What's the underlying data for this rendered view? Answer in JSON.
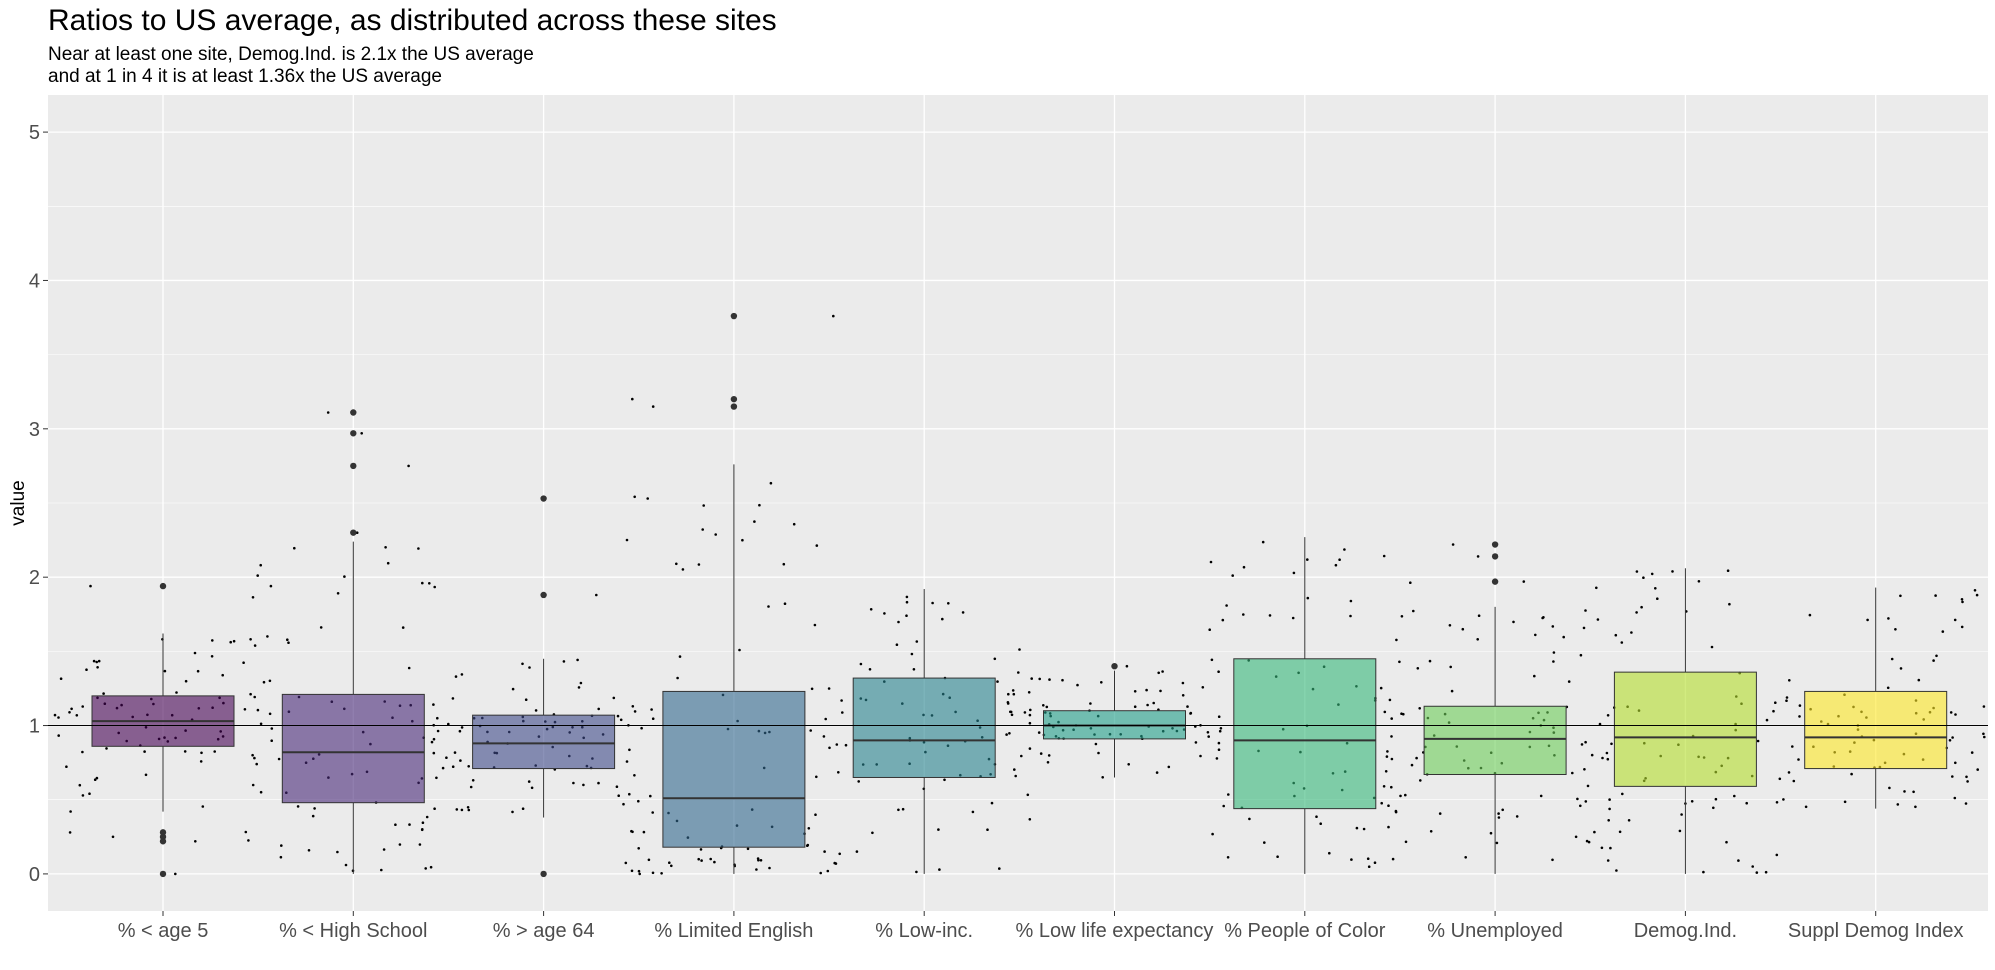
{
  "chart_data": {
    "type": "boxplot",
    "title": "Ratios to US average, as distributed across these sites",
    "subtitle_lines": [
      "Near at least one site, Demog.Ind. is 2.1x the US average",
      "and at 1 in 4 it is at least 1.36x the US average"
    ],
    "xlabel": "",
    "ylabel": "value",
    "ylim": [
      -0.25,
      5.25
    ],
    "yticks": [
      0,
      1,
      2,
      3,
      4,
      5
    ],
    "reference_line": 1,
    "grid": true,
    "legend": "none",
    "categories": [
      "% < age 5",
      "% < High School",
      "% > age 64",
      "% Limited English",
      "% Low-inc.",
      "% Low life expectancy",
      "% People of Color",
      "% Unemployed",
      "Demog.Ind.",
      "Suppl Demog Index"
    ],
    "boxes": [
      {
        "name": "% < age 5",
        "lower_whisker": 0.42,
        "q1": 0.86,
        "median": 1.03,
        "q3": 1.2,
        "upper_whisker": 1.62,
        "outliers": [
          1.94,
          0.28,
          0.25,
          0.22,
          0.0
        ],
        "color": "#440154"
      },
      {
        "name": "% < High School",
        "lower_whisker": 0.0,
        "q1": 0.48,
        "median": 0.82,
        "q3": 1.21,
        "upper_whisker": 2.24,
        "outliers": [
          3.11,
          2.97,
          2.75,
          2.3
        ],
        "color": "#482878"
      },
      {
        "name": "% > age 64",
        "lower_whisker": 0.38,
        "q1": 0.71,
        "median": 0.88,
        "q3": 1.07,
        "upper_whisker": 1.45,
        "outliers": [
          2.53,
          1.88,
          0.0
        ],
        "color": "#3E4A89"
      },
      {
        "name": "% Limited English",
        "lower_whisker": 0.0,
        "q1": 0.18,
        "median": 0.51,
        "q3": 1.23,
        "upper_whisker": 2.76,
        "outliers": [
          3.76,
          3.2,
          3.15
        ],
        "color": "#31688E"
      },
      {
        "name": "% Low-inc.",
        "lower_whisker": 0.0,
        "q1": 0.65,
        "median": 0.9,
        "q3": 1.32,
        "upper_whisker": 1.92,
        "outliers": [],
        "color": "#26828E"
      },
      {
        "name": "% Low life expectancy",
        "lower_whisker": 0.65,
        "q1": 0.91,
        "median": 1.0,
        "q3": 1.1,
        "upper_whisker": 1.37,
        "outliers": [
          1.4
        ],
        "color": "#1F9E89"
      },
      {
        "name": "% People of Color",
        "lower_whisker": 0.0,
        "q1": 0.44,
        "median": 0.9,
        "q3": 1.45,
        "upper_whisker": 2.27,
        "outliers": [],
        "color": "#35B779"
      },
      {
        "name": "% Unemployed",
        "lower_whisker": 0.0,
        "q1": 0.67,
        "median": 0.91,
        "q3": 1.13,
        "upper_whisker": 1.8,
        "outliers": [
          2.22,
          2.14,
          1.97
        ],
        "color": "#6DCD59"
      },
      {
        "name": "Demog.Ind.",
        "lower_whisker": 0.0,
        "q1": 0.59,
        "median": 0.92,
        "q3": 1.36,
        "upper_whisker": 2.06,
        "outliers": [],
        "color": "#B4DE2C"
      },
      {
        "name": "Suppl Demog Index",
        "lower_whisker": 0.44,
        "q1": 0.71,
        "median": 0.92,
        "q3": 1.23,
        "upper_whisker": 1.93,
        "outliers": [],
        "color": "#FDE725"
      }
    ]
  }
}
